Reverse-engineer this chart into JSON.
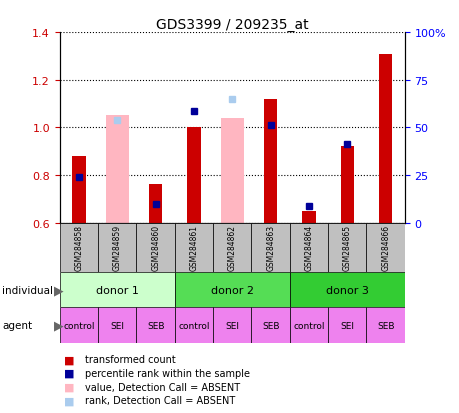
{
  "title": "GDS3399 / 209235_at",
  "samples": [
    "GSM284858",
    "GSM284859",
    "GSM284860",
    "GSM284861",
    "GSM284862",
    "GSM284863",
    "GSM284864",
    "GSM284865",
    "GSM284866"
  ],
  "red_bars": [
    0.88,
    0.0,
    0.76,
    1.0,
    0.0,
    1.12,
    0.65,
    0.92,
    1.31
  ],
  "blue_markers": [
    0.79,
    0.0,
    0.68,
    1.07,
    0.0,
    1.01,
    0.67,
    0.93,
    0.0
  ],
  "pink_bars": [
    0.0,
    1.05,
    0.0,
    0.0,
    1.04,
    0.0,
    0.0,
    0.0,
    0.0
  ],
  "lightblue_markers": [
    0.0,
    1.03,
    0.0,
    0.0,
    1.12,
    0.0,
    0.0,
    0.0,
    0.0
  ],
  "ylim": [
    0.6,
    1.4
  ],
  "yticks_left": [
    0.6,
    0.8,
    1.0,
    1.2,
    1.4
  ],
  "yticks_right_labels": [
    "0",
    "25",
    "50",
    "75",
    "100%"
  ],
  "donors": [
    {
      "label": "donor 1",
      "start": 0,
      "end": 3,
      "color": "#CCFFCC"
    },
    {
      "label": "donor 2",
      "start": 3,
      "end": 6,
      "color": "#55DD55"
    },
    {
      "label": "donor 3",
      "start": 6,
      "end": 9,
      "color": "#33CC33"
    }
  ],
  "agents": [
    "control",
    "SEI",
    "SEB",
    "control",
    "SEI",
    "SEB",
    "control",
    "SEI",
    "SEB"
  ],
  "agent_color": "#EE82EE",
  "sample_box_color": "#C0C0C0",
  "red_color": "#CC0000",
  "blue_color": "#000099",
  "pink_color": "#FFB6C1",
  "lightblue_color": "#AACCEE",
  "legend_items": [
    {
      "label": "transformed count",
      "color": "#CC0000"
    },
    {
      "label": "percentile rank within the sample",
      "color": "#000099"
    },
    {
      "label": "value, Detection Call = ABSENT",
      "color": "#FFB6C1"
    },
    {
      "label": "rank, Detection Call = ABSENT",
      "color": "#AACCEE"
    }
  ]
}
